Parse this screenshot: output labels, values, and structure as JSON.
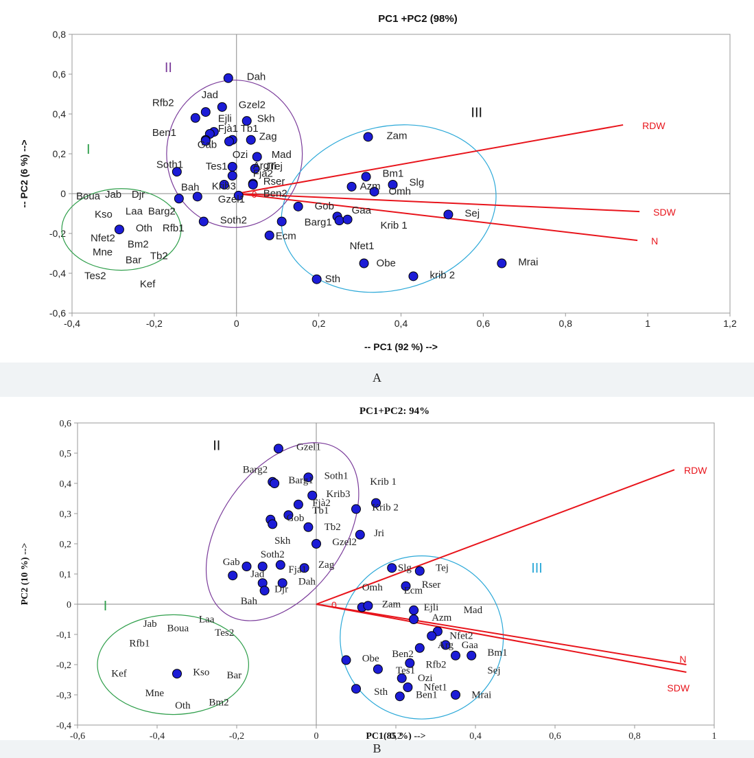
{
  "figure": {
    "panel_labels": [
      "A",
      "B"
    ]
  },
  "chart_data": [
    {
      "type": "scatter",
      "title": "PC1 +PC2 (98%)",
      "xlabel": "-- PC1 (92 %) -->",
      "ylabel": "-- PC2 (6 %) -->",
      "xlim": [
        -0.4,
        1.2
      ],
      "ylim": [
        -0.6,
        0.8
      ],
      "xticks": [
        "-0,4",
        "-0,2",
        "0",
        "0,2",
        "0,4",
        "0,6",
        "0,8",
        "1",
        "1,2"
      ],
      "yticks": [
        "-0,6",
        "-0,4",
        "-0,2",
        "0",
        "0,2",
        "0,4",
        "0,6",
        "0,8"
      ],
      "grid": false,
      "origin_label": "0",
      "points": [
        {
          "x": -0.02,
          "y": 0.58
        },
        {
          "x": -0.075,
          "y": 0.41
        },
        {
          "x": -0.035,
          "y": 0.435
        },
        {
          "x": -0.1,
          "y": 0.38
        },
        {
          "x": 0.025,
          "y": 0.365
        },
        {
          "x": -0.055,
          "y": 0.31
        },
        {
          "x": -0.065,
          "y": 0.3
        },
        {
          "x": -0.01,
          "y": 0.27
        },
        {
          "x": -0.075,
          "y": 0.27
        },
        {
          "x": -0.075,
          "y": 0.265
        },
        {
          "x": -0.018,
          "y": 0.262
        },
        {
          "x": 0.035,
          "y": 0.27
        },
        {
          "x": 0.05,
          "y": 0.185
        },
        {
          "x": -0.01,
          "y": 0.135
        },
        {
          "x": 0.045,
          "y": 0.125
        },
        {
          "x": -0.145,
          "y": 0.11
        },
        {
          "x": -0.01,
          "y": 0.09
        },
        {
          "x": 0.04,
          "y": 0.05
        },
        {
          "x": -0.03,
          "y": 0.045
        },
        {
          "x": 0.04,
          "y": 0.045
        },
        {
          "x": -0.095,
          "y": -0.015
        },
        {
          "x": -0.14,
          "y": -0.025
        },
        {
          "x": 0.005,
          "y": -0.01
        },
        {
          "x": -0.285,
          "y": -0.18
        },
        {
          "x": -0.08,
          "y": -0.14
        },
        {
          "x": 0.11,
          "y": -0.14
        },
        {
          "x": 0.08,
          "y": -0.21
        },
        {
          "x": 0.15,
          "y": -0.065
        },
        {
          "x": 0.245,
          "y": -0.115
        },
        {
          "x": 0.25,
          "y": -0.135
        },
        {
          "x": 0.27,
          "y": -0.13
        },
        {
          "x": 0.195,
          "y": -0.43
        },
        {
          "x": 0.31,
          "y": -0.35
        },
        {
          "x": 0.43,
          "y": -0.415
        },
        {
          "x": 0.515,
          "y": -0.105
        },
        {
          "x": 0.645,
          "y": -0.35
        },
        {
          "x": 0.32,
          "y": 0.285
        },
        {
          "x": 0.315,
          "y": 0.085
        },
        {
          "x": 0.38,
          "y": 0.045
        },
        {
          "x": 0.28,
          "y": 0.035
        },
        {
          "x": 0.335,
          "y": 0.01
        }
      ],
      "labels": [
        {
          "text": "Dah",
          "x": 0.025,
          "y": 0.57
        },
        {
          "text": "Jad",
          "x": -0.085,
          "y": 0.48
        },
        {
          "text": "Rfb2",
          "x": -0.205,
          "y": 0.44
        },
        {
          "text": "Gzel2",
          "x": 0.005,
          "y": 0.43
        },
        {
          "text": "Ejli",
          "x": -0.045,
          "y": 0.36
        },
        {
          "text": "Skh",
          "x": 0.05,
          "y": 0.36
        },
        {
          "text": "Fjà1",
          "x": -0.045,
          "y": 0.31
        },
        {
          "text": "Tb1",
          "x": 0.01,
          "y": 0.31
        },
        {
          "text": "Ben1",
          "x": -0.205,
          "y": 0.29
        },
        {
          "text": "Zag",
          "x": 0.055,
          "y": 0.27
        },
        {
          "text": "Gab",
          "x": -0.095,
          "y": 0.23
        },
        {
          "text": "Ozi",
          "x": -0.01,
          "y": 0.18
        },
        {
          "text": "Mad",
          "x": 0.085,
          "y": 0.18
        },
        {
          "text": "Soth1",
          "x": -0.195,
          "y": 0.13
        },
        {
          "text": "Tes1",
          "x": -0.075,
          "y": 0.12
        },
        {
          "text": "Arg",
          "x": 0.04,
          "y": 0.125
        },
        {
          "text": "Jri",
          "x": 0.07,
          "y": 0.12
        },
        {
          "text": "Tej",
          "x": 0.08,
          "y": 0.12
        },
        {
          "text": "Fjà2",
          "x": 0.04,
          "y": 0.085
        },
        {
          "text": "Rser",
          "x": 0.065,
          "y": 0.045
        },
        {
          "text": "Krib3",
          "x": -0.06,
          "y": 0.02
        },
        {
          "text": "Bah",
          "x": -0.135,
          "y": 0.015
        },
        {
          "text": "Ben2",
          "x": 0.065,
          "y": -0.015
        },
        {
          "text": "Gzel1",
          "x": -0.045,
          "y": -0.045
        },
        {
          "text": "Boua",
          "x": -0.39,
          "y": -0.03
        },
        {
          "text": "Jab",
          "x": -0.32,
          "y": -0.02
        },
        {
          "text": "Djr",
          "x": -0.255,
          "y": -0.02
        },
        {
          "text": "Kso",
          "x": -0.345,
          "y": -0.12
        },
        {
          "text": "Laa",
          "x": -0.27,
          "y": -0.105
        },
        {
          "text": "Barg2",
          "x": -0.215,
          "y": -0.105
        },
        {
          "text": "Oth",
          "x": -0.245,
          "y": -0.19
        },
        {
          "text": "Rfb1",
          "x": -0.18,
          "y": -0.19
        },
        {
          "text": "Soth2",
          "x": -0.04,
          "y": -0.15
        },
        {
          "text": "Nfet2",
          "x": -0.355,
          "y": -0.24
        },
        {
          "text": "Bm2",
          "x": -0.265,
          "y": -0.27
        },
        {
          "text": "Mne",
          "x": -0.35,
          "y": -0.31
        },
        {
          "text": "Tb2",
          "x": -0.21,
          "y": -0.33
        },
        {
          "text": "Bar",
          "x": -0.27,
          "y": -0.35
        },
        {
          "text": "Tes2",
          "x": -0.37,
          "y": -0.43
        },
        {
          "text": "Kef",
          "x": -0.235,
          "y": -0.47
        },
        {
          "text": "Ecm",
          "x": 0.095,
          "y": -0.23
        },
        {
          "text": "Barg1",
          "x": 0.165,
          "y": -0.16
        },
        {
          "text": "Gob",
          "x": 0.19,
          "y": -0.08
        },
        {
          "text": "Gaa",
          "x": 0.28,
          "y": -0.1
        },
        {
          "text": "Krib 1",
          "x": 0.35,
          "y": -0.175
        },
        {
          "text": "Nfet1",
          "x": 0.275,
          "y": -0.28
        },
        {
          "text": "Obe",
          "x": 0.34,
          "y": -0.365
        },
        {
          "text": "Sth",
          "x": 0.215,
          "y": -0.445
        },
        {
          "text": "krib 2",
          "x": 0.47,
          "y": -0.425
        },
        {
          "text": "Sej",
          "x": 0.555,
          "y": -0.115
        },
        {
          "text": "Mrai",
          "x": 0.685,
          "y": -0.36
        },
        {
          "text": "Zam",
          "x": 0.365,
          "y": 0.275
        },
        {
          "text": "Bm1",
          "x": 0.355,
          "y": 0.085
        },
        {
          "text": "Slg",
          "x": 0.42,
          "y": 0.04
        },
        {
          "text": "Azm",
          "x": 0.3,
          "y": 0.02
        },
        {
          "text": "Omh",
          "x": 0.37,
          "y": -0.005
        }
      ],
      "vectors": [
        {
          "name": "RDW",
          "x": 0.94,
          "y": 0.345
        },
        {
          "name": "SDW",
          "x": 0.98,
          "y": -0.09
        },
        {
          "name": "N",
          "x": 0.975,
          "y": -0.235
        }
      ],
      "groups": [
        {
          "name": "I",
          "color": "#2e9e4a",
          "cx": -0.28,
          "cy": -0.18,
          "rx": 0.145,
          "ry": 0.205,
          "angle": 0
        },
        {
          "name": "II",
          "color": "#7a3b9a",
          "cx": -0.005,
          "cy": 0.2,
          "rx": 0.165,
          "ry": 0.37,
          "angle": 0
        },
        {
          "name": "III",
          "color": "#2aa8d8",
          "cx": 0.37,
          "cy": -0.075,
          "rx": 0.265,
          "ry": 0.41,
          "angle": -15
        }
      ],
      "group_labels": [
        {
          "text": "I",
          "x": -0.365,
          "y": 0.2,
          "color": "#2e9e4a"
        },
        {
          "text": "II",
          "x": -0.175,
          "y": 0.61,
          "color": "#7a3b9a"
        },
        {
          "text": "III",
          "x": 0.57,
          "y": 0.385,
          "color": "#111111"
        }
      ]
    },
    {
      "type": "scatter",
      "title": "PC1+PC2: 94%",
      "xlabel": "PC1(85 %) -->",
      "ylabel": "PC2 (10 %) -->",
      "xlim": [
        -0.6,
        1.0
      ],
      "ylim": [
        -0.4,
        0.6
      ],
      "xticks": [
        "-0,6",
        "-0,4",
        "-0,2",
        "0",
        "0,2",
        "0,4",
        "0,6",
        "0,8",
        "1"
      ],
      "yticks": [
        "-0,4",
        "-0,3",
        "-0,2",
        "-0,1",
        "0",
        "0,1",
        "0,2",
        "0,3",
        "0,4",
        "0,5",
        "0,6"
      ],
      "grid": false,
      "origin_label": "0",
      "points": [
        {
          "x": -0.095,
          "y": 0.515
        },
        {
          "x": -0.11,
          "y": 0.405
        },
        {
          "x": -0.105,
          "y": 0.4
        },
        {
          "x": -0.02,
          "y": 0.42
        },
        {
          "x": -0.01,
          "y": 0.36
        },
        {
          "x": -0.045,
          "y": 0.33
        },
        {
          "x": -0.07,
          "y": 0.295
        },
        {
          "x": -0.115,
          "y": 0.28
        },
        {
          "x": -0.11,
          "y": 0.265
        },
        {
          "x": -0.02,
          "y": 0.255
        },
        {
          "x": 0.0,
          "y": 0.2
        },
        {
          "x": 0.1,
          "y": 0.315
        },
        {
          "x": 0.15,
          "y": 0.335
        },
        {
          "x": 0.11,
          "y": 0.23
        },
        {
          "x": -0.175,
          "y": 0.125
        },
        {
          "x": -0.135,
          "y": 0.125
        },
        {
          "x": -0.09,
          "y": 0.13
        },
        {
          "x": -0.03,
          "y": 0.12
        },
        {
          "x": -0.21,
          "y": 0.095
        },
        {
          "x": -0.135,
          "y": 0.07
        },
        {
          "x": -0.085,
          "y": 0.07
        },
        {
          "x": -0.13,
          "y": 0.045
        },
        {
          "x": -0.35,
          "y": -0.23
        },
        {
          "x": 0.19,
          "y": 0.12
        },
        {
          "x": 0.26,
          "y": 0.11
        },
        {
          "x": 0.225,
          "y": 0.06
        },
        {
          "x": 0.115,
          "y": -0.01
        },
        {
          "x": 0.13,
          "y": -0.005
        },
        {
          "x": 0.245,
          "y": -0.02
        },
        {
          "x": 0.245,
          "y": -0.05
        },
        {
          "x": 0.305,
          "y": -0.09
        },
        {
          "x": 0.29,
          "y": -0.105
        },
        {
          "x": 0.26,
          "y": -0.145
        },
        {
          "x": 0.325,
          "y": -0.135
        },
        {
          "x": 0.35,
          "y": -0.17
        },
        {
          "x": 0.39,
          "y": -0.17
        },
        {
          "x": 0.075,
          "y": -0.185
        },
        {
          "x": 0.155,
          "y": -0.215
        },
        {
          "x": 0.235,
          "y": -0.195
        },
        {
          "x": 0.215,
          "y": -0.245
        },
        {
          "x": 0.1,
          "y": -0.28
        },
        {
          "x": 0.23,
          "y": -0.275
        },
        {
          "x": 0.21,
          "y": -0.305
        },
        {
          "x": 0.35,
          "y": -0.3
        }
      ],
      "labels": [
        {
          "text": "Gzel1",
          "x": -0.05,
          "y": 0.51
        },
        {
          "text": "Barg2",
          "x": -0.185,
          "y": 0.435
        },
        {
          "text": "Barg1",
          "x": -0.07,
          "y": 0.4
        },
        {
          "text": "Soth1",
          "x": 0.02,
          "y": 0.415
        },
        {
          "text": "Krib 1",
          "x": 0.135,
          "y": 0.395
        },
        {
          "text": "Krib3",
          "x": 0.025,
          "y": 0.355
        },
        {
          "text": "Krib 2",
          "x": 0.14,
          "y": 0.31
        },
        {
          "text": "Fjà2",
          "x": -0.01,
          "y": 0.325
        },
        {
          "text": "Tb1",
          "x": -0.01,
          "y": 0.3
        },
        {
          "text": "Gob",
          "x": -0.075,
          "y": 0.275
        },
        {
          "text": "Tb2",
          "x": 0.02,
          "y": 0.245
        },
        {
          "text": "Jri",
          "x": 0.145,
          "y": 0.225
        },
        {
          "text": "Skh",
          "x": -0.105,
          "y": 0.2
        },
        {
          "text": "Gzel2",
          "x": 0.04,
          "y": 0.195
        },
        {
          "text": "Soth2",
          "x": -0.14,
          "y": 0.155
        },
        {
          "text": "Gab",
          "x": -0.235,
          "y": 0.13
        },
        {
          "text": "Jad",
          "x": -0.165,
          "y": 0.09
        },
        {
          "text": "Fja1",
          "x": -0.07,
          "y": 0.105
        },
        {
          "text": "Zag",
          "x": 0.005,
          "y": 0.12
        },
        {
          "text": "Dah",
          "x": -0.045,
          "y": 0.065
        },
        {
          "text": "Djr",
          "x": -0.105,
          "y": 0.04
        },
        {
          "text": "Bah",
          "x": -0.19,
          "y": 0.0
        },
        {
          "text": "Jab",
          "x": -0.435,
          "y": -0.075
        },
        {
          "text": "Boua",
          "x": -0.375,
          "y": -0.09
        },
        {
          "text": "Laa",
          "x": -0.295,
          "y": -0.06
        },
        {
          "text": "Tes2",
          "x": -0.255,
          "y": -0.105
        },
        {
          "text": "Rfb1",
          "x": -0.47,
          "y": -0.14
        },
        {
          "text": "Kso",
          "x": -0.31,
          "y": -0.235
        },
        {
          "text": "Bar",
          "x": -0.225,
          "y": -0.245
        },
        {
          "text": "Kef",
          "x": -0.515,
          "y": -0.24
        },
        {
          "text": "Mne",
          "x": -0.43,
          "y": -0.305
        },
        {
          "text": "Oth",
          "x": -0.355,
          "y": -0.345
        },
        {
          "text": "Bm2",
          "x": -0.27,
          "y": -0.335
        },
        {
          "text": "Slg",
          "x": 0.205,
          "y": 0.11
        },
        {
          "text": "Tej",
          "x": 0.3,
          "y": 0.11
        },
        {
          "text": "Rser",
          "x": 0.265,
          "y": 0.055
        },
        {
          "text": "Omh",
          "x": 0.115,
          "y": 0.045
        },
        {
          "text": "Ecm",
          "x": 0.22,
          "y": 0.035
        },
        {
          "text": "Zam",
          "x": 0.165,
          "y": -0.01
        },
        {
          "text": "Ejli",
          "x": 0.27,
          "y": -0.02
        },
        {
          "text": "Mad",
          "x": 0.37,
          "y": -0.03
        },
        {
          "text": "Azm",
          "x": 0.29,
          "y": -0.055
        },
        {
          "text": "Nfet2",
          "x": 0.335,
          "y": -0.115
        },
        {
          "text": "Arg",
          "x": 0.305,
          "y": -0.145
        },
        {
          "text": "Gaa",
          "x": 0.365,
          "y": -0.145
        },
        {
          "text": "Bm1",
          "x": 0.43,
          "y": -0.17
        },
        {
          "text": "Sej",
          "x": 0.43,
          "y": -0.23
        },
        {
          "text": "Obe",
          "x": 0.115,
          "y": -0.19
        },
        {
          "text": "Ben2",
          "x": 0.19,
          "y": -0.175
        },
        {
          "text": "Rfb2",
          "x": 0.275,
          "y": -0.21
        },
        {
          "text": "Tes1",
          "x": 0.2,
          "y": -0.23
        },
        {
          "text": "Ozi",
          "x": 0.255,
          "y": -0.255
        },
        {
          "text": "Nfet1",
          "x": 0.27,
          "y": -0.285
        },
        {
          "text": "Sth",
          "x": 0.145,
          "y": -0.3
        },
        {
          "text": "Ben1",
          "x": 0.25,
          "y": -0.31
        },
        {
          "text": "Mrai",
          "x": 0.39,
          "y": -0.31
        }
      ],
      "vectors": [
        {
          "name": "RDW",
          "x": 0.9,
          "y": 0.445
        },
        {
          "name": "N",
          "x": 0.93,
          "y": -0.2
        },
        {
          "name": "SDW",
          "x": 0.93,
          "y": -0.225
        }
      ],
      "groups": [
        {
          "name": "I",
          "color": "#2e9e4a",
          "cx": -0.36,
          "cy": -0.2,
          "rx": 0.19,
          "ry": 0.165,
          "angle": 0
        },
        {
          "name": "II",
          "color": "#7a3b9a",
          "cx": -0.085,
          "cy": 0.24,
          "rx": 0.155,
          "ry": 0.33,
          "angle": 35
        },
        {
          "name": "III",
          "color": "#2aa8d8",
          "cx": 0.265,
          "cy": -0.11,
          "rx": 0.205,
          "ry": 0.27,
          "angle": 0
        }
      ],
      "group_labels": [
        {
          "text": "I",
          "x": -0.535,
          "y": -0.02,
          "color": "#2e9e4a"
        },
        {
          "text": "II",
          "x": -0.26,
          "y": 0.51,
          "color": "#111111"
        },
        {
          "text": "III",
          "x": 0.54,
          "y": 0.105,
          "color": "#2aa8d8"
        }
      ]
    }
  ]
}
